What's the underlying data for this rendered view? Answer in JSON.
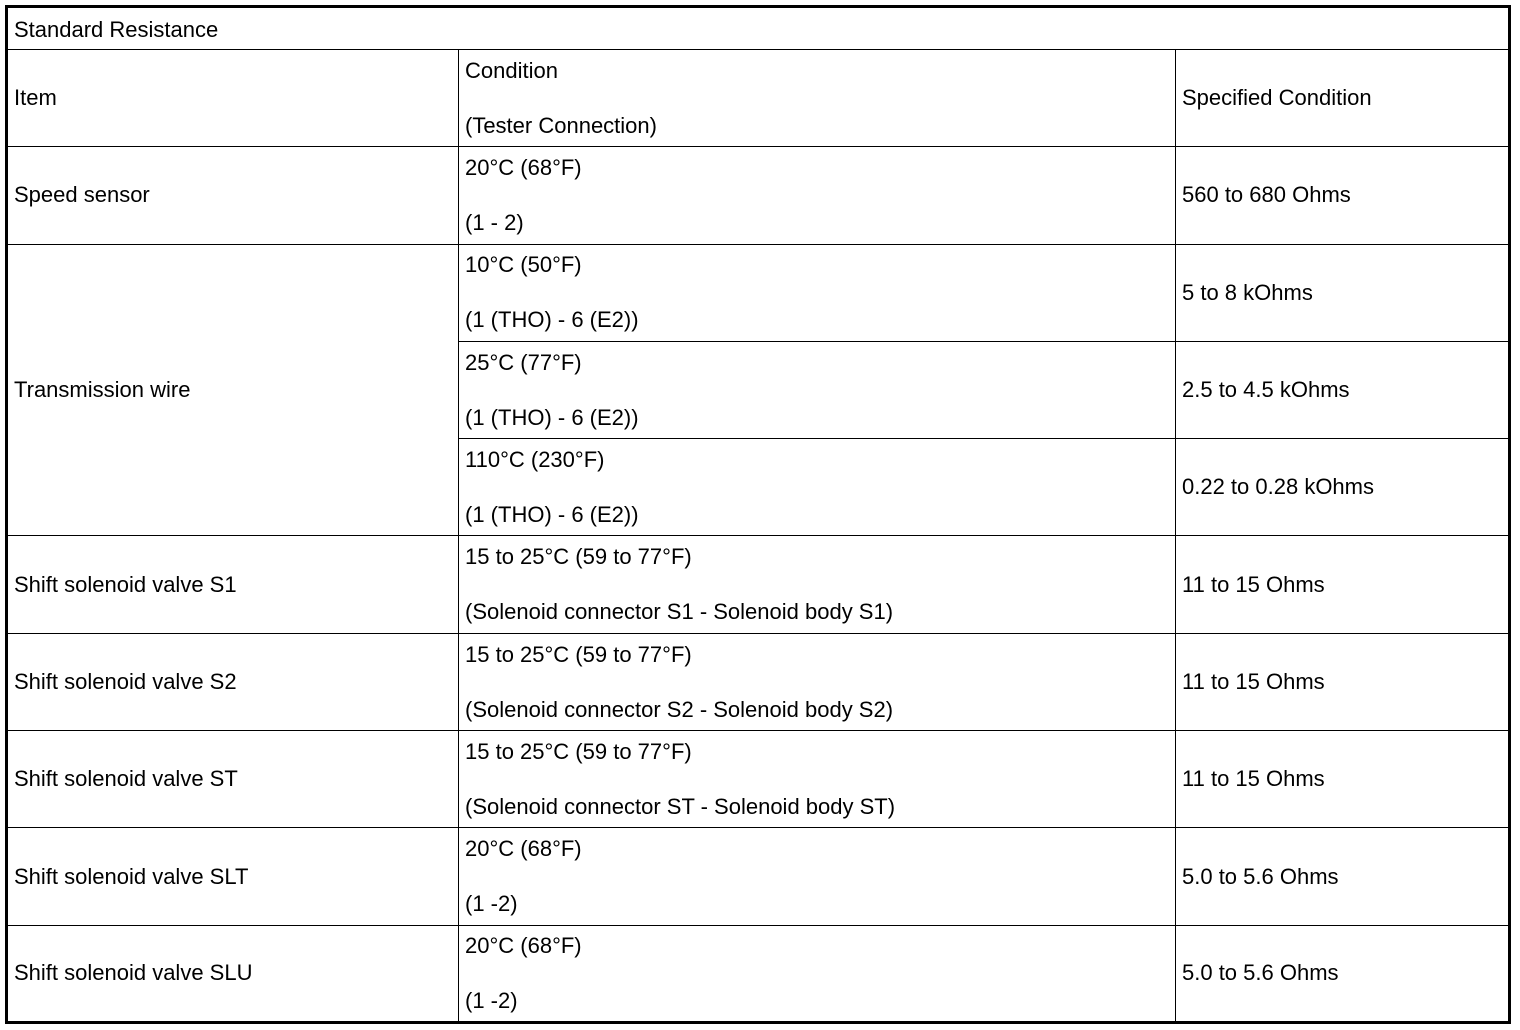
{
  "table": {
    "title": "Standard Resistance",
    "headers": {
      "item": "Item",
      "condition_line1": "Condition",
      "condition_line2": "(Tester Connection)",
      "specified": "Specified Condition"
    },
    "rows": [
      {
        "item": "Speed sensor",
        "conditions": [
          {
            "temp": "20°C (68°F)",
            "connection": "(1 - 2)",
            "specified": "560 to 680 Ohms"
          }
        ]
      },
      {
        "item": "Transmission wire",
        "conditions": [
          {
            "temp": "10°C (50°F)",
            "connection": "(1 (THO) - 6 (E2))",
            "specified": "5 to 8 kOhms"
          },
          {
            "temp": "25°C (77°F)",
            "connection": "(1 (THO) - 6 (E2))",
            "specified": "2.5 to 4.5 kOhms"
          },
          {
            "temp": "110°C (230°F)",
            "connection": "(1 (THO) - 6 (E2))",
            "specified": "0.22 to 0.28 kOhms"
          }
        ]
      },
      {
        "item": "Shift solenoid valve S1",
        "conditions": [
          {
            "temp": "15 to 25°C (59 to 77°F)",
            "connection": "(Solenoid connector S1 - Solenoid body S1)",
            "specified": "11 to 15 Ohms"
          }
        ]
      },
      {
        "item": "Shift solenoid valve S2",
        "conditions": [
          {
            "temp": "15 to 25°C (59 to 77°F)",
            "connection": "(Solenoid connector S2 - Solenoid body S2)",
            "specified": "11 to 15 Ohms"
          }
        ]
      },
      {
        "item": "Shift solenoid valve ST",
        "conditions": [
          {
            "temp": "15 to 25°C (59 to 77°F)",
            "connection": "(Solenoid connector ST - Solenoid body ST)",
            "specified": "11 to 15 Ohms"
          }
        ]
      },
      {
        "item": "Shift solenoid valve SLT",
        "conditions": [
          {
            "temp": "20°C (68°F)",
            "connection": "(1 -2)",
            "specified": "5.0 to 5.6 Ohms"
          }
        ]
      },
      {
        "item": "Shift solenoid valve SLU",
        "conditions": [
          {
            "temp": "20°C (68°F)",
            "connection": "(1 -2)",
            "specified": "5.0 to 5.6 Ohms"
          }
        ]
      }
    ]
  }
}
